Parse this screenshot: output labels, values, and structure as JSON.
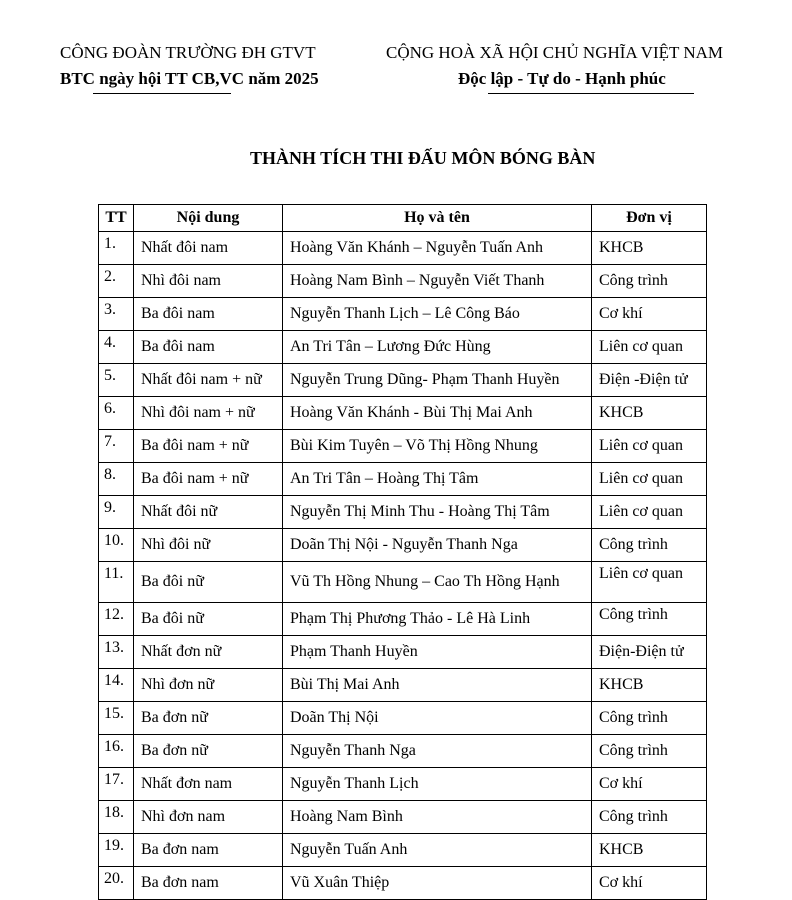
{
  "header": {
    "left_line1": "CÔNG ĐOÀN TRƯỜNG ĐH GTVT",
    "left_line2": "BTC ngày hội TT CB,VC năm 2025",
    "right_line1": "CỘNG HOÀ XÃ HỘI CHỦ NGHĨA VIỆT NAM",
    "right_line2": "Độc lập - Tự do - Hạnh phúc"
  },
  "title": "THÀNH TÍCH THI ĐẤU MÔN BÓNG BÀN",
  "table": {
    "columns": [
      "TT",
      "Nội dung",
      "Họ và tên",
      "Đơn vị"
    ],
    "rows": [
      [
        "1.",
        "Nhất đôi nam",
        "Hoàng Văn Khánh – Nguyễn Tuấn Anh",
        "KHCB"
      ],
      [
        "2.",
        "Nhì đôi nam",
        "Hoàng Nam Bình – Nguyễn Viết Thanh",
        "Công trình"
      ],
      [
        "3.",
        "Ba đôi nam",
        "Nguyễn Thanh Lịch – Lê Công Báo",
        "Cơ khí"
      ],
      [
        "4.",
        "Ba đôi nam",
        "An Tri Tân – Lương Đức Hùng",
        "Liên cơ quan"
      ],
      [
        "5.",
        "Nhất đôi nam + nữ",
        "Nguyễn Trung Dũng- Phạm Thanh Huyền",
        "Điện -Điện tử"
      ],
      [
        "6.",
        "Nhì đôi nam + nữ",
        "Hoàng Văn Khánh - Bùi Thị Mai Anh",
        "KHCB"
      ],
      [
        "7.",
        "Ba đôi nam + nữ",
        "Bùi Kim Tuyên – Võ Thị Hồng Nhung",
        "Liên cơ quan"
      ],
      [
        "8.",
        "Ba đôi nam + nữ",
        "An Tri Tân – Hoàng Thị Tâm",
        "Liên cơ quan"
      ],
      [
        "9.",
        "Nhất đôi nữ",
        "Nguyễn Thị Minh Thu - Hoàng Thị Tâm",
        "Liên cơ quan"
      ],
      [
        "10.",
        "Nhì đôi nữ",
        "Doãn Thị Nội - Nguyễn Thanh Nga",
        "Công trình"
      ],
      [
        "11.",
        "Ba đôi nữ",
        "Vũ Th Hồng Nhung – Cao Th Hồng Hạnh",
        "Liên cơ quan"
      ],
      [
        "12.",
        "Ba đôi nữ",
        "Phạm Thị Phương Thảo - Lê Hà Linh",
        "Công trình"
      ],
      [
        "13.",
        "Nhất đơn nữ",
        "Phạm Thanh Huyền",
        "Điện-Điện tử"
      ],
      [
        "14.",
        "Nhì đơn nữ",
        "Bùi Thị Mai Anh",
        "KHCB"
      ],
      [
        "15.",
        "Ba đơn nữ",
        "Doãn Thị Nội",
        "Công trình"
      ],
      [
        "16.",
        "Ba đơn nữ",
        "Nguyễn Thanh Nga",
        "Công trình"
      ],
      [
        "17.",
        "Nhất đơn nam",
        "Nguyễn Thanh Lịch",
        "Cơ khí"
      ],
      [
        "18.",
        "Nhì đơn nam",
        "Hoàng Nam Bình",
        "Công trình"
      ],
      [
        "19.",
        "Ba đơn nam",
        "Nguyễn Tuấn Anh",
        "KHCB"
      ],
      [
        "20.",
        "Ba đơn nam",
        "Vũ Xuân Thiệp",
        "Cơ khí"
      ]
    ]
  }
}
